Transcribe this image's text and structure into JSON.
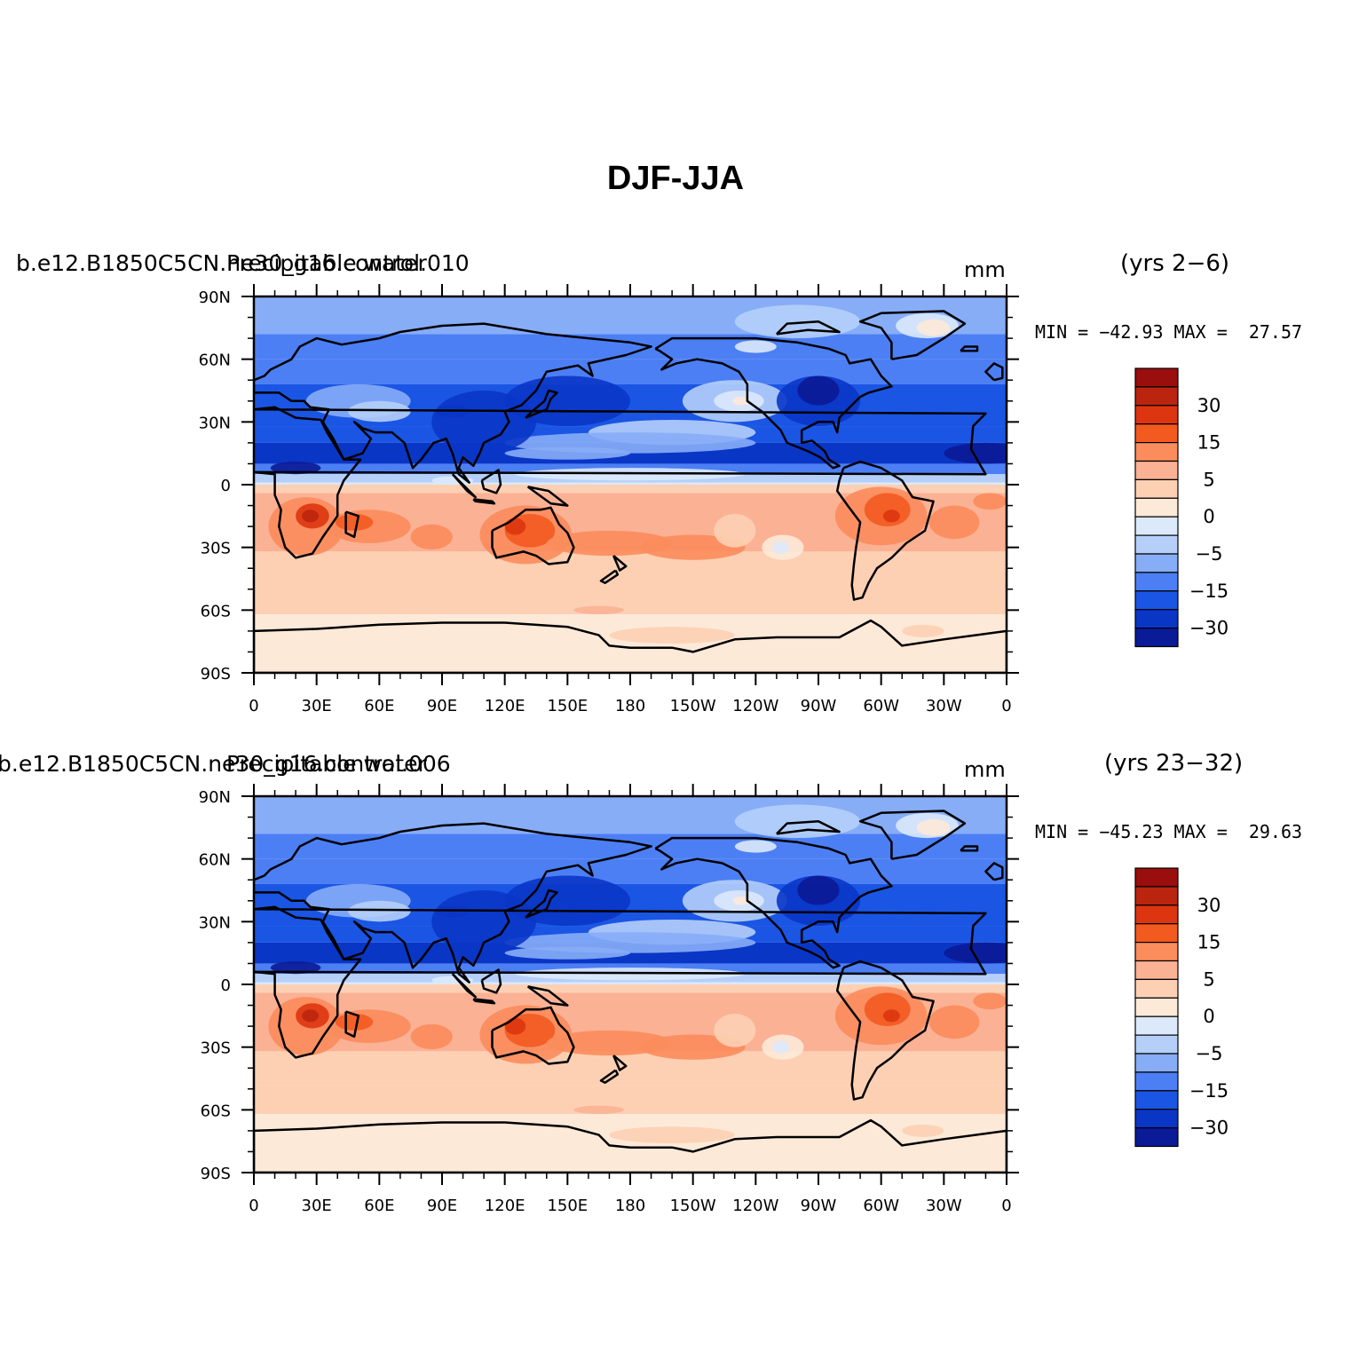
{
  "title": "DJF-JJA",
  "panels": [
    {
      "case_label": "b.e12.B1850C5CN.ne30_g16.control.010",
      "variable_label": "Precipitable water",
      "units": "mm",
      "years": "(yrs 2−6)",
      "minmax": "MIN = −42.93 MAX =  27.57",
      "min": -42.93,
      "max": 27.57
    },
    {
      "case_label": "b.e12.B1850C5CN.ne30_g16.control.006",
      "variable_label": "Precipitable water",
      "units": "mm",
      "years": "(yrs 23−32)",
      "minmax": "MIN = −45.23 MAX =  29.63",
      "min": -45.23,
      "max": 29.63
    }
  ],
  "lat_ticks": [
    "90N",
    "60N",
    "30N",
    "0",
    "30S",
    "60S",
    "90S"
  ],
  "lon_ticks": [
    "0",
    "30E",
    "60E",
    "90E",
    "120E",
    "150E",
    "180",
    "150W",
    "120W",
    "90W",
    "60W",
    "30W",
    "0"
  ],
  "colorbar": {
    "colors": [
      "#9a0e0e",
      "#bb2510",
      "#dd3510",
      "#f25a20",
      "#fb8c5c",
      "#fbb194",
      "#fdd0b4",
      "#fde9d8",
      "#dbe9fb",
      "#b5cff9",
      "#87adf7",
      "#4c7ff4",
      "#1a55e4",
      "#0a36c6",
      "#0b1a96"
    ],
    "labels": [
      "30",
      "15",
      "5",
      "0",
      "−5",
      "−15",
      "−30"
    ]
  },
  "palette": {
    "land_outline": "#000000",
    "background": "#ffffff"
  }
}
